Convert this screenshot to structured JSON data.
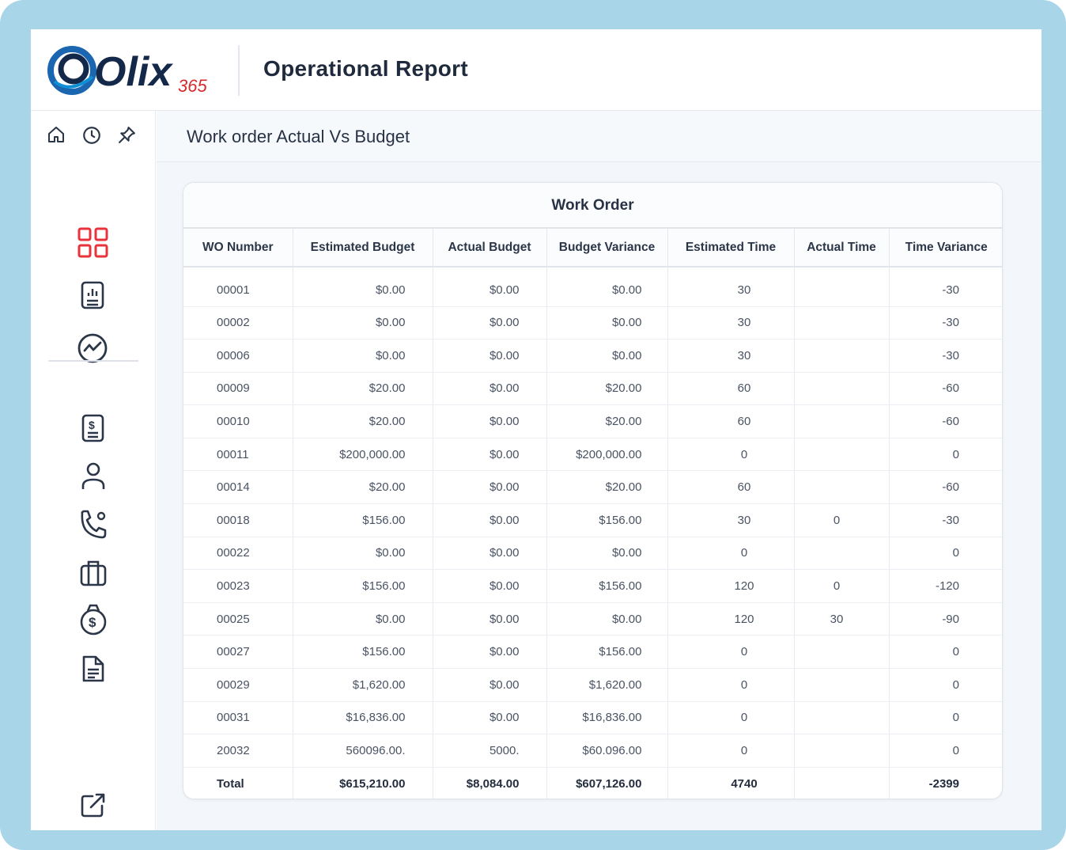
{
  "brand": {
    "logo_text": "Olix",
    "logo_suffix": "365",
    "colors": {
      "primary": "#1b66b0",
      "dark": "#142849",
      "accent": "#d42b2b"
    }
  },
  "header": {
    "title": "Operational Report"
  },
  "top_icons": [
    "home-icon",
    "history-icon",
    "pin-icon"
  ],
  "sidebar": {
    "active_color": "#e8323c",
    "items": [
      "dashboard-icon",
      "report-icon",
      "analytics-icon",
      "invoice-icon",
      "user-icon",
      "phone-icon",
      "briefcase-icon",
      "money-icon",
      "document-icon"
    ],
    "footer_item": "external-link-icon"
  },
  "page": {
    "title": "Work order Actual Vs Budget"
  },
  "table": {
    "group_title": "Work Order",
    "columns": [
      "WO Number",
      "Estimated Budget",
      "Actual Budget",
      "Budget Variance",
      "Estimated Time",
      "Actual Time",
      "Time Variance"
    ],
    "rows": [
      [
        "00001",
        "$0.00",
        "$0.00",
        "$0.00",
        "30",
        "",
        "-30"
      ],
      [
        "00002",
        "$0.00",
        "$0.00",
        "$0.00",
        "30",
        "",
        "-30"
      ],
      [
        "00006",
        "$0.00",
        "$0.00",
        "$0.00",
        "30",
        "",
        "-30"
      ],
      [
        "00009",
        "$20.00",
        "$0.00",
        "$20.00",
        "60",
        "",
        "-60"
      ],
      [
        "00010",
        "$20.00",
        "$0.00",
        "$20.00",
        "60",
        "",
        "-60"
      ],
      [
        "00011",
        "$200,000.00",
        "$0.00",
        "$200,000.00",
        "0",
        "",
        "0"
      ],
      [
        "00014",
        "$20.00",
        "$0.00",
        "$20.00",
        "60",
        "",
        "-60"
      ],
      [
        "00018",
        "$156.00",
        "$0.00",
        "$156.00",
        "30",
        "0",
        "-30"
      ],
      [
        "00022",
        "$0.00",
        "$0.00",
        "$0.00",
        "0",
        "",
        "0"
      ],
      [
        "00023",
        "$156.00",
        "$0.00",
        "$156.00",
        "120",
        "0",
        "-120"
      ],
      [
        "00025",
        "$0.00",
        "$0.00",
        "$0.00",
        "120",
        "30",
        "-90"
      ],
      [
        "00027",
        "$156.00",
        "$0.00",
        "$156.00",
        "0",
        "",
        "0"
      ],
      [
        "00029",
        "$1,620.00",
        "$0.00",
        "$1,620.00",
        "0",
        "",
        "0"
      ],
      [
        "00031",
        "$16,836.00",
        "$0.00",
        "$16,836.00",
        "0",
        "",
        "0"
      ],
      [
        "20032",
        "560096.00.",
        "5000.",
        "$60.096.00",
        "0",
        "",
        "0"
      ]
    ],
    "total": [
      "Total",
      "$615,210.00",
      "$8,084.00",
      "$607,126.00",
      "4740",
      "",
      "-2399"
    ]
  }
}
